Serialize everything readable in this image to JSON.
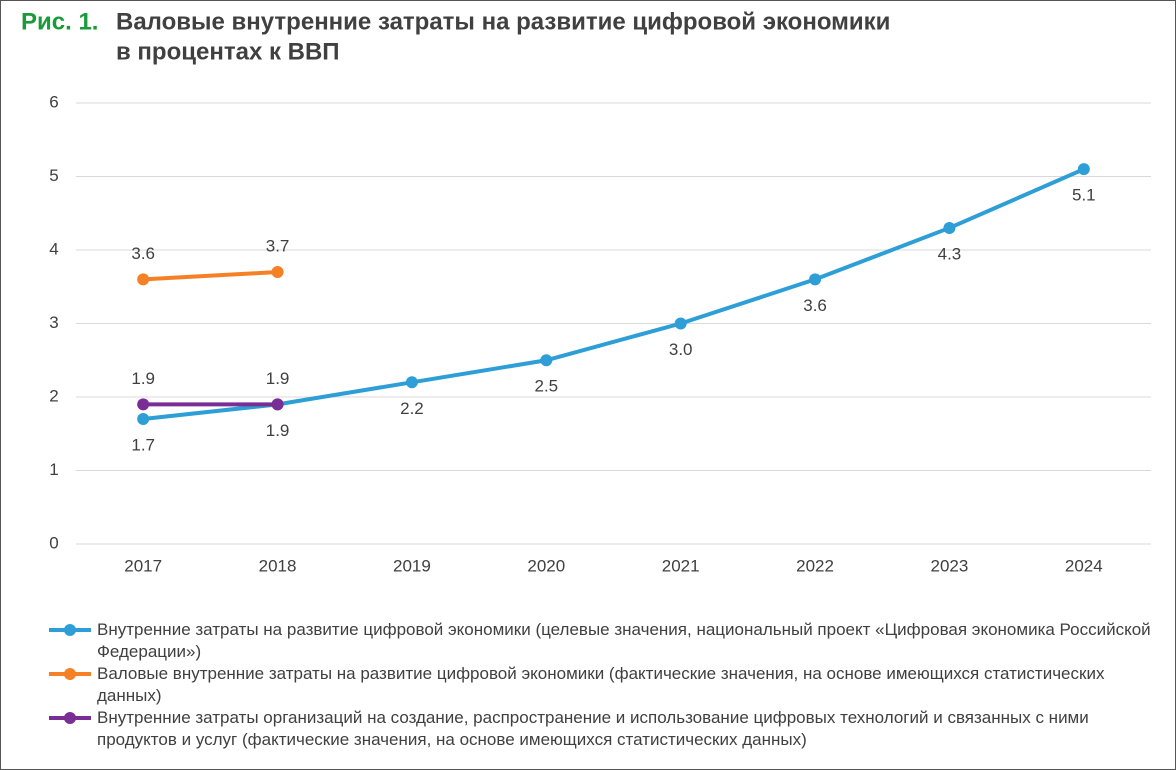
{
  "chart_data": {
    "type": "line",
    "figure_label": "Рис. 1.",
    "title": [
      "Валовые внутренние затраты на развитие цифровой экономики",
      "в процентах к ВВП"
    ],
    "categories": [
      "2017",
      "2018",
      "2019",
      "2020",
      "2021",
      "2022",
      "2023",
      "2024"
    ],
    "series": [
      {
        "name": "Внутренние затраты на развитие цифровой экономики (целевые значения, национальный проект «Цифровая экономика Российской Федерации»)",
        "color": "#2e9fd6",
        "label_position": "below",
        "values": [
          1.7,
          1.9,
          2.2,
          2.5,
          3.0,
          3.6,
          4.3,
          5.1
        ],
        "value_labels": [
          "1.7",
          "1.9",
          "2.2",
          "2.5",
          "3.0",
          "3.6",
          "4.3",
          "5.1"
        ]
      },
      {
        "name": "Валовые внутренние затраты на развитие цифровой экономики (фактические значения, на основе имеющихся статистических данных)",
        "color": "#f58025",
        "label_position": "above",
        "values": [
          3.6,
          3.7,
          null,
          null,
          null,
          null,
          null,
          null
        ],
        "value_labels": [
          "3.6",
          "3.7",
          null,
          null,
          null,
          null,
          null,
          null
        ]
      },
      {
        "name": "Внутренние затраты организаций на создание, распространение и использование цифровых технологий и связанных с ними продуктов и услуг (фактические значения, на основе имеющихся статистических данных)",
        "color": "#7b2d96",
        "label_position": "above",
        "values": [
          1.9,
          1.9,
          null,
          null,
          null,
          null,
          null,
          null
        ],
        "value_labels": [
          "1.9",
          "1.9",
          null,
          null,
          null,
          null,
          null,
          null
        ]
      }
    ],
    "ylim": [
      0,
      6
    ],
    "yticks": [
      0,
      1,
      2,
      3,
      4,
      5,
      6
    ],
    "grid": true
  }
}
